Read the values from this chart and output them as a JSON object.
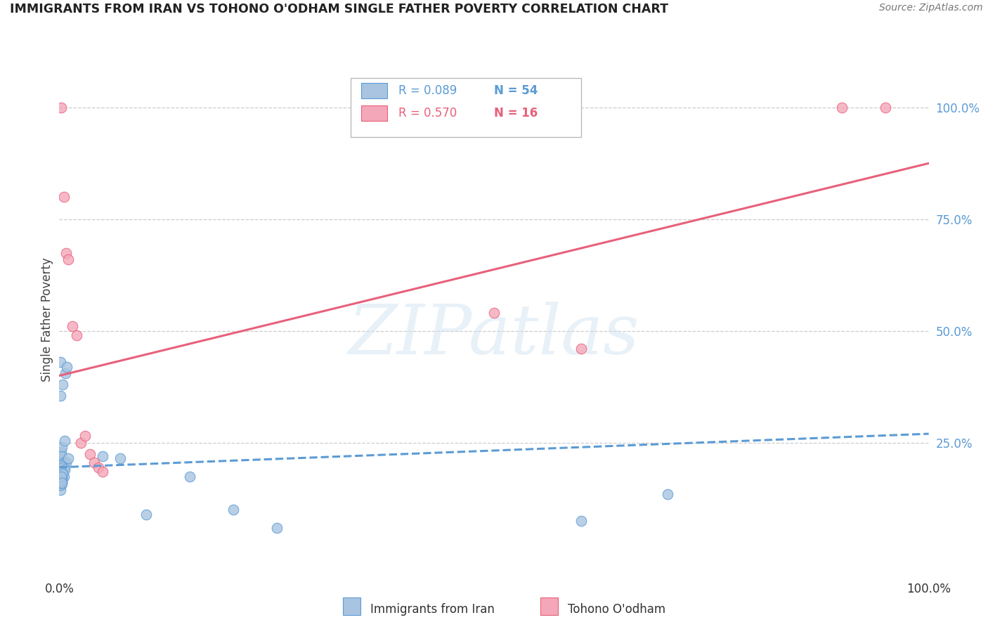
{
  "title": "IMMIGRANTS FROM IRAN VS TOHONO O'ODHAM SINGLE FATHER POVERTY CORRELATION CHART",
  "source": "Source: ZipAtlas.com",
  "ylabel": "Single Father Poverty",
  "right_yticks": [
    "100.0%",
    "75.0%",
    "50.0%",
    "25.0%"
  ],
  "right_ytick_vals": [
    1.0,
    0.75,
    0.5,
    0.25
  ],
  "legend_blue_R": "R = 0.089",
  "legend_blue_N": "N = 54",
  "legend_pink_R": "R = 0.570",
  "legend_pink_N": "N = 16",
  "legend_label_blue": "Immigrants from Iran",
  "legend_label_pink": "Tohono O'odham",
  "watermark": "ZIPatlas",
  "blue_color": "#a8c4e0",
  "blue_line_color": "#5b9bd5",
  "pink_color": "#f4a7b9",
  "pink_line_color": "#e8607a",
  "blue_scatter": [
    [
      0.001,
      0.2
    ],
    [
      0.002,
      0.185
    ],
    [
      0.001,
      0.175
    ],
    [
      0.003,
      0.195
    ],
    [
      0.002,
      0.18
    ],
    [
      0.004,
      0.19
    ],
    [
      0.001,
      0.215
    ],
    [
      0.002,
      0.23
    ],
    [
      0.005,
      0.205
    ],
    [
      0.003,
      0.24
    ],
    [
      0.006,
      0.255
    ],
    [
      0.002,
      0.22
    ],
    [
      0.001,
      0.355
    ],
    [
      0.001,
      0.43
    ],
    [
      0.004,
      0.38
    ],
    [
      0.007,
      0.405
    ],
    [
      0.009,
      0.42
    ],
    [
      0.003,
      0.165
    ],
    [
      0.005,
      0.205
    ],
    [
      0.001,
      0.17
    ],
    [
      0.002,
      0.155
    ],
    [
      0.001,
      0.145
    ],
    [
      0.003,
      0.16
    ],
    [
      0.002,
      0.19
    ],
    [
      0.001,
      0.175
    ],
    [
      0.004,
      0.185
    ],
    [
      0.006,
      0.195
    ],
    [
      0.008,
      0.205
    ],
    [
      0.01,
      0.215
    ],
    [
      0.001,
      0.17
    ],
    [
      0.002,
      0.18
    ],
    [
      0.003,
      0.16
    ],
    [
      0.005,
      0.175
    ],
    [
      0.002,
      0.2
    ],
    [
      0.004,
      0.195
    ],
    [
      0.006,
      0.19
    ],
    [
      0.003,
      0.175
    ],
    [
      0.002,
      0.185
    ],
    [
      0.001,
      0.155
    ],
    [
      0.001,
      0.16
    ],
    [
      0.002,
      0.165
    ],
    [
      0.003,
      0.17
    ],
    [
      0.004,
      0.18
    ],
    [
      0.001,
      0.165
    ],
    [
      0.002,
      0.175
    ],
    [
      0.003,
      0.16
    ],
    [
      0.05,
      0.22
    ],
    [
      0.07,
      0.215
    ],
    [
      0.1,
      0.09
    ],
    [
      0.15,
      0.175
    ],
    [
      0.2,
      0.1
    ],
    [
      0.25,
      0.06
    ],
    [
      0.6,
      0.075
    ],
    [
      0.7,
      0.135
    ]
  ],
  "pink_scatter": [
    [
      0.002,
      1.0
    ],
    [
      0.005,
      0.8
    ],
    [
      0.008,
      0.675
    ],
    [
      0.01,
      0.66
    ],
    [
      0.015,
      0.51
    ],
    [
      0.02,
      0.49
    ],
    [
      0.025,
      0.25
    ],
    [
      0.03,
      0.265
    ],
    [
      0.035,
      0.225
    ],
    [
      0.04,
      0.205
    ],
    [
      0.045,
      0.195
    ],
    [
      0.05,
      0.185
    ],
    [
      0.5,
      0.54
    ],
    [
      0.6,
      0.46
    ],
    [
      0.9,
      1.0
    ],
    [
      0.95,
      1.0
    ]
  ],
  "blue_trend_x": [
    0.0,
    1.0
  ],
  "blue_trend_y": [
    0.195,
    0.27
  ],
  "pink_trend_x": [
    0.0,
    1.0
  ],
  "pink_trend_y": [
    0.4,
    0.875
  ],
  "xlim": [
    0.0,
    1.0
  ],
  "ylim": [
    -0.05,
    1.1
  ],
  "grid_vals": [
    1.0,
    0.75,
    0.5,
    0.25
  ],
  "grid_color": "#cccccc",
  "background_color": "#ffffff"
}
